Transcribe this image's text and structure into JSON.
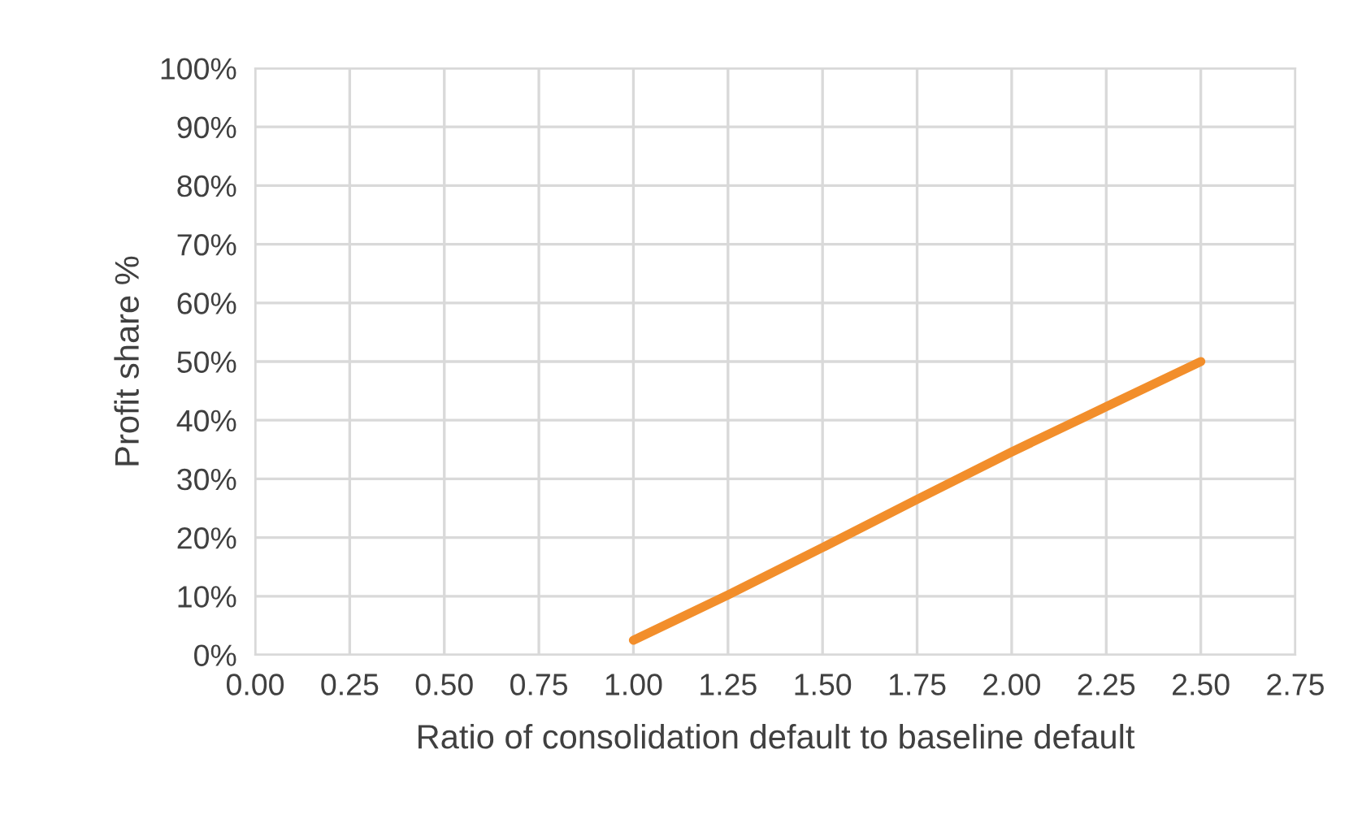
{
  "chart_data": {
    "type": "line",
    "xlabel": "Ratio of consolidation default to baseline default",
    "ylabel": "Profit share %",
    "x": [
      1.0,
      1.25,
      1.5,
      1.75,
      2.0,
      2.25,
      2.5
    ],
    "series": [
      {
        "color": "#f28e2b",
        "values": [
          2.5,
          10.2,
          18.3,
          26.5,
          34.6,
          42.3,
          50
        ]
      }
    ],
    "xlim": [
      0,
      2.75
    ],
    "xticks": [
      {
        "value": 0,
        "label": "0.00"
      },
      {
        "value": 0.25,
        "label": "0.25"
      },
      {
        "value": 0.5,
        "label": "0.50"
      },
      {
        "value": 0.75,
        "label": "0.75"
      },
      {
        "value": 1,
        "label": "1.00"
      },
      {
        "value": 1.25,
        "label": "1.25"
      },
      {
        "value": 1.5,
        "label": "1.50"
      },
      {
        "value": 1.75,
        "label": "1.75"
      },
      {
        "value": 2,
        "label": "2.00"
      },
      {
        "value": 2.25,
        "label": "2.25"
      },
      {
        "value": 2.5,
        "label": "2.50"
      },
      {
        "value": 2.75,
        "label": "2.75"
      }
    ],
    "ylim": [
      0,
      100
    ],
    "yticks": [
      {
        "value": 0,
        "label": "0%"
      },
      {
        "value": 10,
        "label": "10%"
      },
      {
        "value": 20,
        "label": "20%"
      },
      {
        "value": 30,
        "label": "30%"
      },
      {
        "value": 40,
        "label": "40%"
      },
      {
        "value": 50,
        "label": "50%"
      },
      {
        "value": 60,
        "label": "60%"
      },
      {
        "value": 70,
        "label": "70%"
      },
      {
        "value": 80,
        "label": "80%"
      },
      {
        "value": 90,
        "label": "90%"
      },
      {
        "value": 100,
        "label": "100%"
      }
    ],
    "grid": true,
    "marker": "none",
    "line_style": "solid",
    "legend": false
  }
}
